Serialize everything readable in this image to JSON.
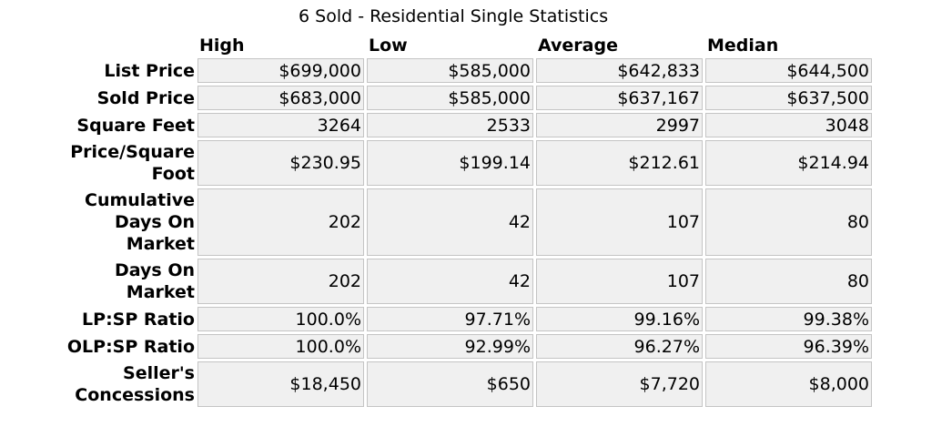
{
  "title": "6 Sold - Residential Single Statistics",
  "columns": [
    "High",
    "Low",
    "Average",
    "Median"
  ],
  "rows": [
    {
      "label": "List Price",
      "values": [
        "$699,000",
        "$585,000",
        "$642,833",
        "$644,500"
      ]
    },
    {
      "label": "Sold Price",
      "values": [
        "$683,000",
        "$585,000",
        "$637,167",
        "$637,500"
      ]
    },
    {
      "label": "Square Feet",
      "values": [
        "3264",
        "2533",
        "2997",
        "3048"
      ]
    },
    {
      "label": "Price/Square Foot",
      "values": [
        "$230.95",
        "$199.14",
        "$212.61",
        "$214.94"
      ]
    },
    {
      "label": "Cumulative Days On Market",
      "values": [
        "202",
        "42",
        "107",
        "80"
      ]
    },
    {
      "label": "Days On Market",
      "values": [
        "202",
        "42",
        "107",
        "80"
      ]
    },
    {
      "label": "LP:SP Ratio",
      "values": [
        "100.0%",
        "97.71%",
        "99.16%",
        "99.38%"
      ]
    },
    {
      "label": "OLP:SP Ratio",
      "values": [
        "100.0%",
        "92.99%",
        "96.27%",
        "96.39%"
      ]
    },
    {
      "label": "Seller's Concessions",
      "values": [
        "$18,450",
        "$650",
        "$7,720",
        "$8,000"
      ]
    }
  ]
}
